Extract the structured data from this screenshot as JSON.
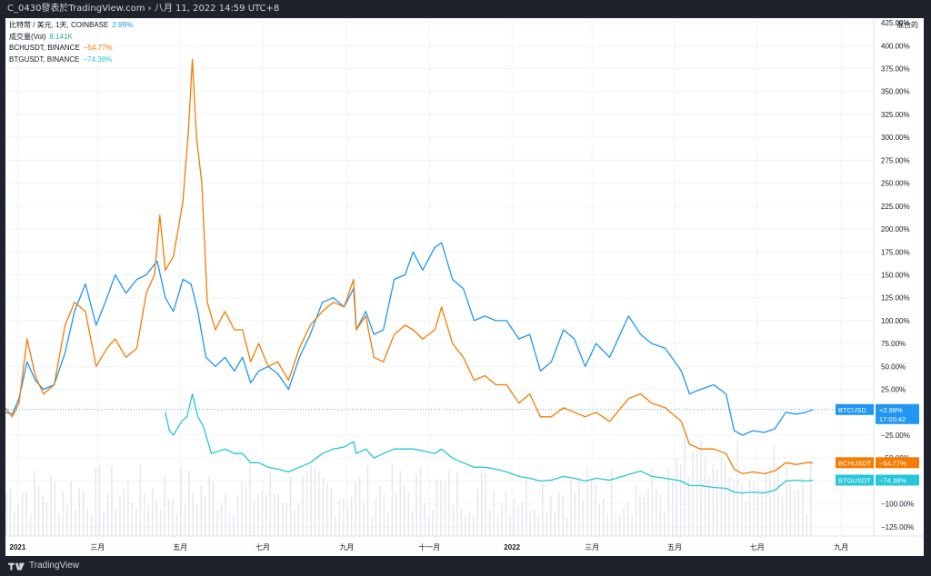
{
  "header": {
    "title": "C_0430發表於TradingView.com › 八月 11, 2022 14:59 UTC+8"
  },
  "footer": {
    "brand": "TradingView"
  },
  "legend": {
    "rows": [
      {
        "label": "比特幣 / 美元, 1天, COINBASE",
        "value": "2.99%",
        "color": "#2196f3"
      },
      {
        "label": "成交量(Vol)",
        "value": "8.141K",
        "color": "#26a69a"
      },
      {
        "label": "BCHUSDT, BINANCE",
        "value": "−54.77%",
        "color": "#f57c00"
      },
      {
        "label": "BTGUSDT, BINANCE",
        "value": "−74.38%",
        "color": "#26c6da"
      }
    ]
  },
  "axis_title": "混合的",
  "price_tags": {
    "btc": {
      "label": "BTCUSD",
      "value": "+2.99%",
      "time": "17:00:42",
      "color": "#2196f3"
    },
    "bch": {
      "label": "BCHUSDT",
      "value": "−54.77%",
      "color": "#f57c00"
    },
    "btg": {
      "label": "BTGUSDT",
      "value": "−74.38%",
      "color": "#26c6da"
    }
  },
  "chart_data": {
    "type": "line",
    "y_unit": "percent",
    "y_axis_ticks": [
      "425.00%",
      "400.00%",
      "375.00%",
      "350.00%",
      "325.00%",
      "300.00%",
      "275.00%",
      "250.00%",
      "225.00%",
      "200.00%",
      "175.00%",
      "150.00%",
      "125.00%",
      "100.00%",
      "75.00%",
      "50.00%",
      "25.00%",
      "−25.00%",
      "−50.00%",
      "−75.00%",
      "−100.00%",
      "−125.00%"
    ],
    "y_axis_values": [
      425,
      400,
      375,
      350,
      325,
      300,
      275,
      250,
      225,
      200,
      175,
      150,
      125,
      100,
      75,
      50,
      25,
      -25,
      -50,
      -75,
      -100,
      -125
    ],
    "ylim": [
      -135,
      430
    ],
    "x_axis_ticks": [
      {
        "label": "2021",
        "date": "2021-01-01",
        "bold": true
      },
      {
        "label": "三月",
        "date": "2021-03-01"
      },
      {
        "label": "五月",
        "date": "2021-05-01"
      },
      {
        "label": "七月",
        "date": "2021-07-01"
      },
      {
        "label": "九月",
        "date": "2021-09-01"
      },
      {
        "label": "十一月",
        "date": "2021-11-01"
      },
      {
        "label": "2022",
        "date": "2022-01-01",
        "bold": true
      },
      {
        "label": "三月",
        "date": "2022-03-01"
      },
      {
        "label": "五月",
        "date": "2022-05-01"
      },
      {
        "label": "七月",
        "date": "2022-07-01"
      },
      {
        "label": "九月",
        "date": "2022-09-01"
      }
    ],
    "xlim": [
      "2020-12-23",
      "2022-09-25"
    ],
    "series": [
      {
        "name": "BTCUSD",
        "color": "#2196f3",
        "points": [
          [
            "2020-12-23",
            0
          ],
          [
            "2020-12-28",
            -2
          ],
          [
            "2021-01-02",
            15
          ],
          [
            "2021-01-08",
            55
          ],
          [
            "2021-01-14",
            35
          ],
          [
            "2021-01-20",
            25
          ],
          [
            "2021-01-28",
            30
          ],
          [
            "2021-02-05",
            65
          ],
          [
            "2021-02-12",
            110
          ],
          [
            "2021-02-20",
            140
          ],
          [
            "2021-02-28",
            95
          ],
          [
            "2021-03-08",
            125
          ],
          [
            "2021-03-14",
            150
          ],
          [
            "2021-03-22",
            130
          ],
          [
            "2021-03-30",
            145
          ],
          [
            "2021-04-06",
            150
          ],
          [
            "2021-04-14",
            165
          ],
          [
            "2021-04-20",
            125
          ],
          [
            "2021-04-26",
            110
          ],
          [
            "2021-05-03",
            145
          ],
          [
            "2021-05-09",
            140
          ],
          [
            "2021-05-14",
            110
          ],
          [
            "2021-05-20",
            60
          ],
          [
            "2021-05-27",
            50
          ],
          [
            "2021-06-03",
            60
          ],
          [
            "2021-06-10",
            45
          ],
          [
            "2021-06-16",
            60
          ],
          [
            "2021-06-22",
            32
          ],
          [
            "2021-06-28",
            45
          ],
          [
            "2021-07-05",
            50
          ],
          [
            "2021-07-12",
            42
          ],
          [
            "2021-07-20",
            25
          ],
          [
            "2021-07-28",
            60
          ],
          [
            "2021-08-05",
            85
          ],
          [
            "2021-08-14",
            120
          ],
          [
            "2021-08-22",
            125
          ],
          [
            "2021-08-30",
            115
          ],
          [
            "2021-09-06",
            135
          ],
          [
            "2021-09-08",
            90
          ],
          [
            "2021-09-15",
            110
          ],
          [
            "2021-09-21",
            85
          ],
          [
            "2021-09-28",
            90
          ],
          [
            "2021-10-06",
            145
          ],
          [
            "2021-10-14",
            150
          ],
          [
            "2021-10-20",
            175
          ],
          [
            "2021-10-27",
            155
          ],
          [
            "2021-11-05",
            180
          ],
          [
            "2021-11-10",
            185
          ],
          [
            "2021-11-18",
            145
          ],
          [
            "2021-11-26",
            135
          ],
          [
            "2021-12-04",
            100
          ],
          [
            "2021-12-12",
            105
          ],
          [
            "2021-12-20",
            100
          ],
          [
            "2021-12-28",
            100
          ],
          [
            "2022-01-06",
            80
          ],
          [
            "2022-01-14",
            85
          ],
          [
            "2022-01-22",
            45
          ],
          [
            "2022-01-30",
            55
          ],
          [
            "2022-02-08",
            90
          ],
          [
            "2022-02-16",
            80
          ],
          [
            "2022-02-24",
            50
          ],
          [
            "2022-03-04",
            75
          ],
          [
            "2022-03-14",
            60
          ],
          [
            "2022-03-28",
            105
          ],
          [
            "2022-04-06",
            85
          ],
          [
            "2022-04-14",
            75
          ],
          [
            "2022-04-24",
            70
          ],
          [
            "2022-05-06",
            45
          ],
          [
            "2022-05-12",
            20
          ],
          [
            "2022-05-20",
            25
          ],
          [
            "2022-05-30",
            30
          ],
          [
            "2022-06-08",
            20
          ],
          [
            "2022-06-14",
            -20
          ],
          [
            "2022-06-20",
            -25
          ],
          [
            "2022-06-28",
            -20
          ],
          [
            "2022-07-06",
            -22
          ],
          [
            "2022-07-14",
            -18
          ],
          [
            "2022-07-22",
            0
          ],
          [
            "2022-07-30",
            -2
          ],
          [
            "2022-08-06",
            0
          ],
          [
            "2022-08-11",
            3
          ]
        ]
      },
      {
        "name": "BCHUSDT",
        "color": "#f57c00",
        "points": [
          [
            "2020-12-23",
            5
          ],
          [
            "2020-12-28",
            -5
          ],
          [
            "2021-01-02",
            10
          ],
          [
            "2021-01-08",
            80
          ],
          [
            "2021-01-14",
            40
          ],
          [
            "2021-01-20",
            20
          ],
          [
            "2021-01-28",
            30
          ],
          [
            "2021-02-05",
            95
          ],
          [
            "2021-02-12",
            120
          ],
          [
            "2021-02-20",
            110
          ],
          [
            "2021-02-28",
            50
          ],
          [
            "2021-03-08",
            70
          ],
          [
            "2021-03-14",
            80
          ],
          [
            "2021-03-22",
            60
          ],
          [
            "2021-03-30",
            70
          ],
          [
            "2021-04-06",
            130
          ],
          [
            "2021-04-12",
            150
          ],
          [
            "2021-04-16",
            215
          ],
          [
            "2021-04-20",
            155
          ],
          [
            "2021-04-26",
            170
          ],
          [
            "2021-05-03",
            230
          ],
          [
            "2021-05-07",
            305
          ],
          [
            "2021-05-10",
            385
          ],
          [
            "2021-05-13",
            300
          ],
          [
            "2021-05-17",
            250
          ],
          [
            "2021-05-21",
            120
          ],
          [
            "2021-05-27",
            90
          ],
          [
            "2021-06-03",
            110
          ],
          [
            "2021-06-10",
            90
          ],
          [
            "2021-06-16",
            90
          ],
          [
            "2021-06-22",
            55
          ],
          [
            "2021-06-28",
            75
          ],
          [
            "2021-07-05",
            50
          ],
          [
            "2021-07-12",
            55
          ],
          [
            "2021-07-20",
            35
          ],
          [
            "2021-07-28",
            70
          ],
          [
            "2021-08-05",
            95
          ],
          [
            "2021-08-14",
            110
          ],
          [
            "2021-08-22",
            120
          ],
          [
            "2021-08-30",
            115
          ],
          [
            "2021-09-06",
            145
          ],
          [
            "2021-09-08",
            90
          ],
          [
            "2021-09-15",
            105
          ],
          [
            "2021-09-21",
            60
          ],
          [
            "2021-09-28",
            55
          ],
          [
            "2021-10-06",
            85
          ],
          [
            "2021-10-14",
            95
          ],
          [
            "2021-10-20",
            90
          ],
          [
            "2021-10-27",
            80
          ],
          [
            "2021-11-05",
            90
          ],
          [
            "2021-11-10",
            115
          ],
          [
            "2021-11-18",
            75
          ],
          [
            "2021-11-26",
            60
          ],
          [
            "2021-12-04",
            35
          ],
          [
            "2021-12-12",
            40
          ],
          [
            "2021-12-20",
            30
          ],
          [
            "2021-12-28",
            30
          ],
          [
            "2022-01-06",
            10
          ],
          [
            "2022-01-14",
            20
          ],
          [
            "2022-01-22",
            -5
          ],
          [
            "2022-01-30",
            -5
          ],
          [
            "2022-02-08",
            5
          ],
          [
            "2022-02-16",
            0
          ],
          [
            "2022-02-24",
            -5
          ],
          [
            "2022-03-04",
            0
          ],
          [
            "2022-03-14",
            -10
          ],
          [
            "2022-03-28",
            15
          ],
          [
            "2022-04-06",
            20
          ],
          [
            "2022-04-14",
            10
          ],
          [
            "2022-04-24",
            5
          ],
          [
            "2022-05-06",
            -10
          ],
          [
            "2022-05-12",
            -35
          ],
          [
            "2022-05-20",
            -40
          ],
          [
            "2022-05-30",
            -40
          ],
          [
            "2022-06-08",
            -45
          ],
          [
            "2022-06-14",
            -62
          ],
          [
            "2022-06-20",
            -67
          ],
          [
            "2022-06-28",
            -65
          ],
          [
            "2022-07-06",
            -67
          ],
          [
            "2022-07-14",
            -64
          ],
          [
            "2022-07-22",
            -55
          ],
          [
            "2022-07-30",
            -57
          ],
          [
            "2022-08-06",
            -55
          ],
          [
            "2022-08-11",
            -55
          ]
        ]
      },
      {
        "name": "BTGUSDT",
        "color": "#26c6da",
        "points": [
          [
            "2021-04-20",
            0
          ],
          [
            "2021-04-23",
            -20
          ],
          [
            "2021-04-26",
            -25
          ],
          [
            "2021-05-02",
            -10
          ],
          [
            "2021-05-06",
            -5
          ],
          [
            "2021-05-10",
            20
          ],
          [
            "2021-05-14",
            -5
          ],
          [
            "2021-05-18",
            -15
          ],
          [
            "2021-05-24",
            -45
          ],
          [
            "2021-06-03",
            -40
          ],
          [
            "2021-06-10",
            -45
          ],
          [
            "2021-06-16",
            -45
          ],
          [
            "2021-06-22",
            -55
          ],
          [
            "2021-06-28",
            -55
          ],
          [
            "2021-07-05",
            -60
          ],
          [
            "2021-07-12",
            -62
          ],
          [
            "2021-07-20",
            -65
          ],
          [
            "2021-07-28",
            -60
          ],
          [
            "2021-08-05",
            -55
          ],
          [
            "2021-08-14",
            -45
          ],
          [
            "2021-08-22",
            -40
          ],
          [
            "2021-08-30",
            -38
          ],
          [
            "2021-09-06",
            -32
          ],
          [
            "2021-09-08",
            -45
          ],
          [
            "2021-09-15",
            -40
          ],
          [
            "2021-09-21",
            -50
          ],
          [
            "2021-09-28",
            -45
          ],
          [
            "2021-10-06",
            -40
          ],
          [
            "2021-10-14",
            -40
          ],
          [
            "2021-10-20",
            -40
          ],
          [
            "2021-10-27",
            -42
          ],
          [
            "2021-11-05",
            -45
          ],
          [
            "2021-11-10",
            -40
          ],
          [
            "2021-11-18",
            -50
          ],
          [
            "2021-11-26",
            -55
          ],
          [
            "2021-12-04",
            -60
          ],
          [
            "2021-12-12",
            -60
          ],
          [
            "2021-12-20",
            -62
          ],
          [
            "2021-12-28",
            -65
          ],
          [
            "2022-01-06",
            -70
          ],
          [
            "2022-01-14",
            -72
          ],
          [
            "2022-01-22",
            -75
          ],
          [
            "2022-01-30",
            -74
          ],
          [
            "2022-02-08",
            -70
          ],
          [
            "2022-02-16",
            -72
          ],
          [
            "2022-02-24",
            -75
          ],
          [
            "2022-03-04",
            -72
          ],
          [
            "2022-03-14",
            -74
          ],
          [
            "2022-03-28",
            -68
          ],
          [
            "2022-04-06",
            -64
          ],
          [
            "2022-04-14",
            -70
          ],
          [
            "2022-04-24",
            -72
          ],
          [
            "2022-05-06",
            -75
          ],
          [
            "2022-05-12",
            -80
          ],
          [
            "2022-05-20",
            -80
          ],
          [
            "2022-05-30",
            -82
          ],
          [
            "2022-06-08",
            -83
          ],
          [
            "2022-06-14",
            -87
          ],
          [
            "2022-06-20",
            -88
          ],
          [
            "2022-06-28",
            -87
          ],
          [
            "2022-07-06",
            -88
          ],
          [
            "2022-07-14",
            -85
          ],
          [
            "2022-07-22",
            -75
          ],
          [
            "2022-07-30",
            -74
          ],
          [
            "2022-08-06",
            -75
          ],
          [
            "2022-08-11",
            -74
          ]
        ]
      }
    ]
  }
}
